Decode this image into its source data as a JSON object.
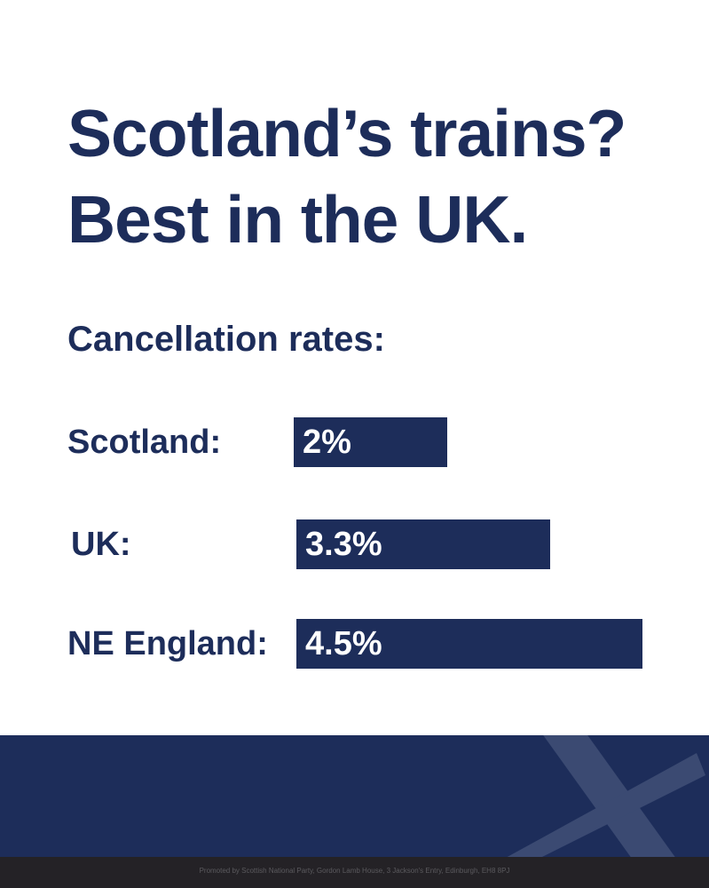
{
  "headline": {
    "line1": "Scotland’s trains?",
    "line2": "Best in the UK."
  },
  "colors": {
    "navy": "#1d2d5a",
    "saltire": "#3b4a72",
    "imprint_bar": "#242226"
  },
  "chart_data": {
    "type": "bar",
    "orientation": "horizontal",
    "title": "Cancellation rates:",
    "categories": [
      "Scotland:",
      "UK:",
      "NE England:"
    ],
    "values": [
      2,
      3.3,
      4.5
    ],
    "value_labels": [
      "2%",
      "3.3%",
      "4.5%"
    ],
    "unit": "%",
    "xlim": [
      0,
      4.5
    ],
    "grid": false,
    "legend": "none"
  },
  "footer": {
    "logo_icon": "saltire-cross-icon",
    "imprint": "Promoted by Scottish National Party, Gordon Lamb House, 3 Jackson's Entry, Edinburgh, EH8 8PJ"
  }
}
